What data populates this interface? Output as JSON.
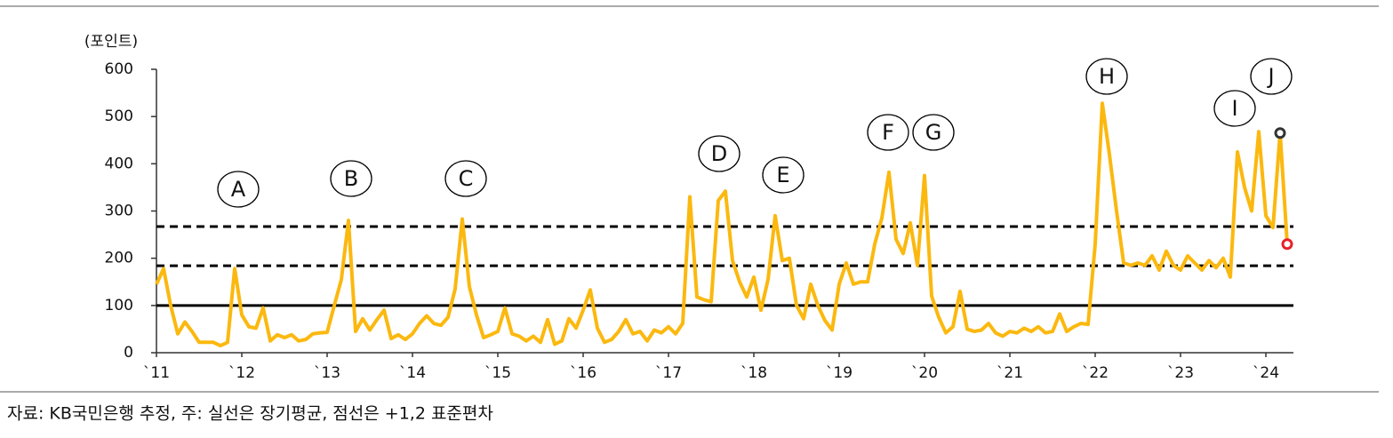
{
  "chart_data": {
    "type": "line",
    "y_axis_label": "(포인트)",
    "source": "자료: KB국민은행 추정, 주: 실선은 장기평균, 점선은 +1,2 표준편차",
    "categories": [
      "`11",
      null,
      null,
      null,
      null,
      null,
      null,
      null,
      null,
      null,
      null,
      null,
      "`12",
      null,
      null,
      null,
      null,
      null,
      null,
      null,
      null,
      null,
      null,
      null,
      "`13",
      null,
      null,
      null,
      null,
      null,
      null,
      null,
      null,
      null,
      null,
      null,
      "`14",
      null,
      null,
      null,
      null,
      null,
      null,
      null,
      null,
      null,
      null,
      null,
      "`15",
      null,
      null,
      null,
      null,
      null,
      null,
      null,
      null,
      null,
      null,
      null,
      "`16",
      null,
      null,
      null,
      null,
      null,
      null,
      null,
      null,
      null,
      null,
      null,
      "`17",
      null,
      null,
      null,
      null,
      null,
      null,
      null,
      null,
      null,
      null,
      null,
      "`18",
      null,
      null,
      null,
      null,
      null,
      null,
      null,
      null,
      null,
      null,
      null,
      "`19",
      null,
      null,
      null,
      null,
      null,
      null,
      null,
      null,
      null,
      null,
      null,
      "`20",
      null,
      null,
      null,
      null,
      null,
      null,
      null,
      null,
      null,
      null,
      null,
      "`21",
      null,
      null,
      null,
      null,
      null,
      null,
      null,
      null,
      null,
      null,
      null,
      "`22",
      null,
      null,
      null,
      null,
      null,
      null,
      null,
      null,
      null,
      null,
      null,
      "`23",
      null,
      null,
      null,
      null,
      null,
      null,
      null,
      null,
      null,
      null,
      null,
      "`24",
      null,
      null,
      null
    ],
    "series": [
      {
        "color": "#fbb80f",
        "values": [
          145,
          178,
          100,
          40,
          65,
          45,
          22,
          22,
          22,
          15,
          22,
          178,
          80,
          55,
          52,
          95,
          25,
          38,
          32,
          38,
          25,
          28,
          40,
          42,
          43,
          100,
          155,
          280,
          45,
          72,
          48,
          70,
          90,
          30,
          38,
          28,
          40,
          62,
          78,
          62,
          58,
          75,
          135,
          283,
          140,
          80,
          32,
          38,
          45,
          95,
          40,
          35,
          25,
          35,
          22,
          70,
          18,
          25,
          72,
          52,
          90,
          133,
          52,
          22,
          28,
          45,
          70,
          40,
          45,
          25,
          48,
          42,
          55,
          40,
          62,
          330,
          118,
          112,
          108,
          322,
          342,
          195,
          150,
          118,
          160,
          90,
          155,
          290,
          195,
          200,
          100,
          72,
          145,
          100,
          68,
          48,
          145,
          190,
          145,
          150,
          150,
          230,
          285,
          382,
          240,
          210,
          275,
          185,
          375,
          120,
          75,
          42,
          55,
          130,
          50,
          45,
          48,
          62,
          42,
          35,
          45,
          42,
          52,
          45,
          55,
          42,
          45,
          82,
          45,
          55,
          62,
          60,
          230,
          528,
          420,
          300,
          190,
          185,
          190,
          185,
          205,
          175,
          215,
          185,
          175,
          205,
          190,
          175,
          195,
          180,
          200,
          160,
          425,
          350,
          300,
          468,
          290,
          265,
          465,
          230
        ]
      }
    ],
    "markers": [
      {
        "index": 158,
        "color": "#333333"
      },
      {
        "index": 159,
        "color": "#e8202a"
      }
    ],
    "reference_lines": [
      {
        "value": 100,
        "style": "solid"
      },
      {
        "value": 184,
        "style": "dashed"
      },
      {
        "value": 267,
        "style": "dashed"
      }
    ],
    "annotations": [
      "A",
      "B",
      "C",
      "D",
      "E",
      "F",
      "G",
      "H",
      "I",
      "J"
    ],
    "ylim": [
      0,
      600
    ],
    "yticks": [
      0,
      100,
      200,
      300,
      400,
      500,
      600
    ]
  }
}
